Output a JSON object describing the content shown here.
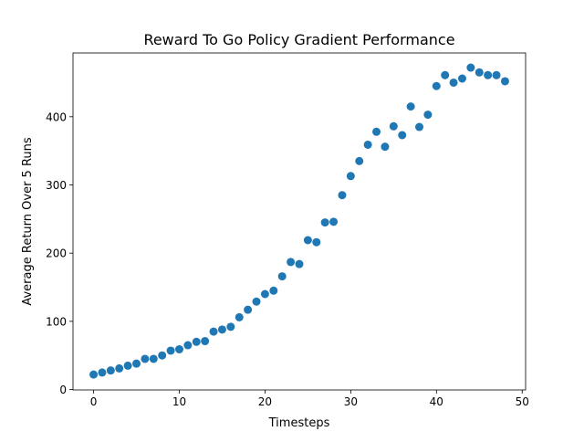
{
  "chart_data": {
    "type": "scatter",
    "title": "Reward To Go Policy Gradient Performance",
    "xlabel": "Timesteps",
    "ylabel": "Average Return Over 5 Runs",
    "xlim": [
      -2.4,
      50.4
    ],
    "ylim": [
      -0.6,
      493.5
    ],
    "xticks": [
      0,
      10,
      20,
      30,
      40,
      50
    ],
    "yticks": [
      0,
      100,
      200,
      300,
      400
    ],
    "grid": false,
    "marker_color": "#1f77b4",
    "series": [
      {
        "x": [
          0,
          1,
          2,
          3,
          4,
          5,
          6,
          7,
          8,
          9,
          10,
          11,
          12,
          13,
          14,
          15,
          16,
          17,
          18,
          19,
          20,
          21,
          22,
          23,
          24,
          25,
          26,
          27,
          28,
          29,
          30,
          31,
          32,
          33,
          34,
          35,
          36,
          37,
          38,
          39,
          40,
          41,
          42,
          43,
          44,
          45,
          46,
          47,
          48
        ],
        "y": [
          22,
          25,
          28,
          31,
          35,
          38,
          45,
          45,
          50,
          57,
          59,
          65,
          70,
          71,
          85,
          88,
          92,
          106,
          117,
          129,
          140,
          145,
          166,
          187,
          184,
          219,
          216,
          245,
          246,
          285,
          313,
          335,
          359,
          378,
          356,
          386,
          373,
          415,
          385,
          403,
          445,
          461,
          450,
          456,
          472,
          465,
          461,
          461,
          452
        ]
      }
    ]
  }
}
